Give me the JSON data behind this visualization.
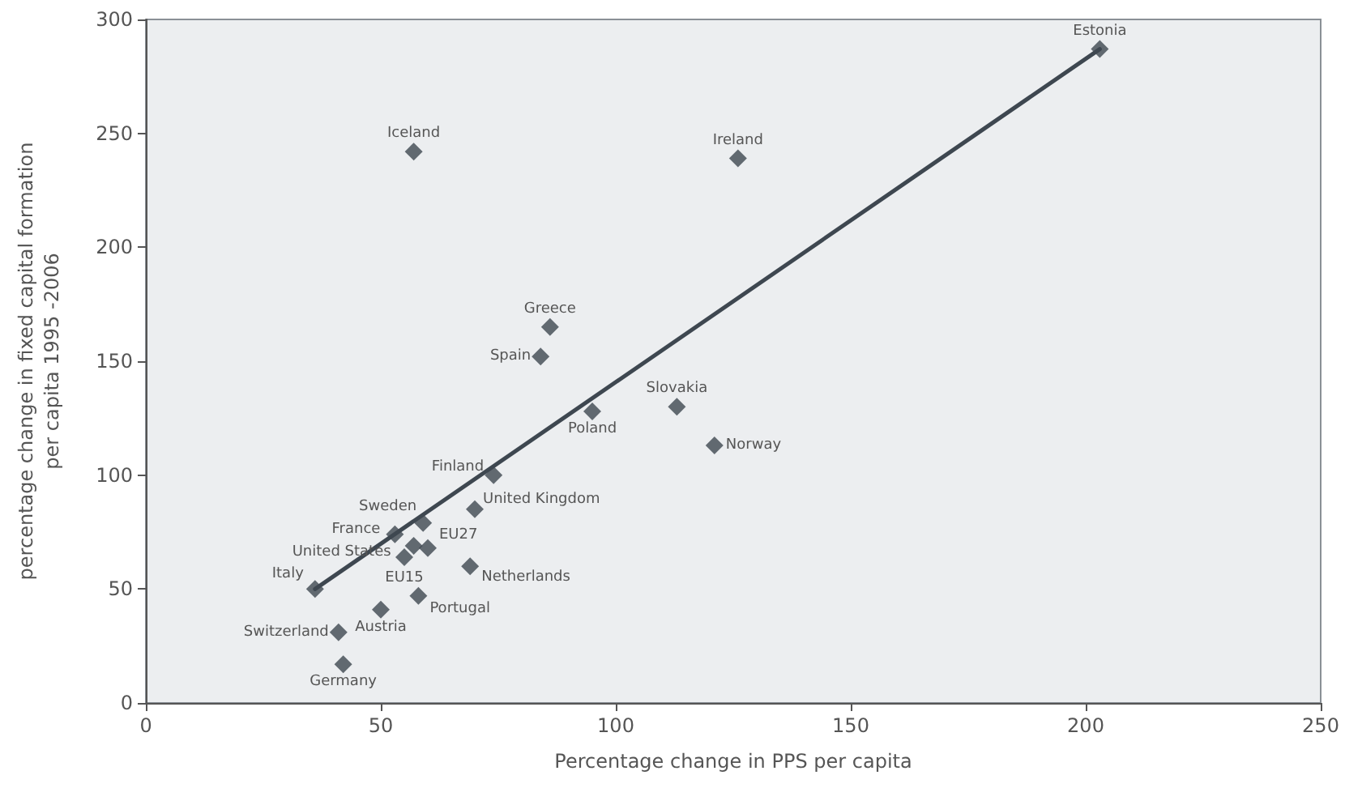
{
  "chart_data": {
    "type": "scatter",
    "xlabel": "Percentage change in PPS per capita",
    "ylabel": "percentage change in fixed capital formation\nper capita 1995 -2006",
    "xlim": [
      0,
      250
    ],
    "xticks": [
      0,
      50,
      100,
      150,
      200,
      250
    ],
    "ylim": [
      0,
      300
    ],
    "yticks": [
      0,
      50,
      100,
      150,
      200,
      250,
      300
    ],
    "grid": false,
    "series": [
      {
        "marker": "diamond",
        "color": "#3e4750",
        "x": [
          203,
          57,
          126,
          86,
          84,
          95,
          113,
          121,
          74,
          70,
          59,
          53,
          57,
          60,
          55,
          36,
          69,
          58,
          50,
          41,
          42
        ],
        "values": [
          287,
          242,
          239,
          165,
          152,
          128,
          130,
          113,
          100,
          85,
          79,
          74,
          69,
          68,
          64,
          50,
          60,
          47,
          41,
          31,
          17
        ]
      },
      {
        "type": "line",
        "marker": "none",
        "color": "#3e4750",
        "x": [
          36,
          203
        ],
        "values": [
          50,
          287
        ]
      }
    ],
    "annotations": [
      {
        "text": "Estonia",
        "x": 203,
        "y": 287
      },
      {
        "text": "Iceland",
        "x": 57,
        "y": 242
      },
      {
        "text": "Ireland",
        "x": 126,
        "y": 239
      },
      {
        "text": "Greece",
        "x": 86,
        "y": 165
      },
      {
        "text": "Spain",
        "x": 84,
        "y": 152
      },
      {
        "text": "Poland",
        "x": 95,
        "y": 128
      },
      {
        "text": "Slovakia",
        "x": 113,
        "y": 130
      },
      {
        "text": "Norway",
        "x": 121,
        "y": 113
      },
      {
        "text": "Finland",
        "x": 74,
        "y": 100
      },
      {
        "text": "United Kingdom",
        "x": 70,
        "y": 85
      },
      {
        "text": "Sweden",
        "x": 59,
        "y": 79
      },
      {
        "text": "France",
        "x": 53,
        "y": 74
      },
      {
        "text": "United States",
        "x": 57,
        "y": 69
      },
      {
        "text": "EU27",
        "x": 60,
        "y": 68
      },
      {
        "text": "EU15",
        "x": 55,
        "y": 64
      },
      {
        "text": "Italy",
        "x": 36,
        "y": 50
      },
      {
        "text": "Netherlands",
        "x": 69,
        "y": 60
      },
      {
        "text": "Portugal",
        "x": 58,
        "y": 47
      },
      {
        "text": "Austria",
        "x": 50,
        "y": 41
      },
      {
        "text": "Switzerland",
        "x": 41,
        "y": 31
      },
      {
        "text": "Germany",
        "x": 42,
        "y": 17
      }
    ]
  }
}
